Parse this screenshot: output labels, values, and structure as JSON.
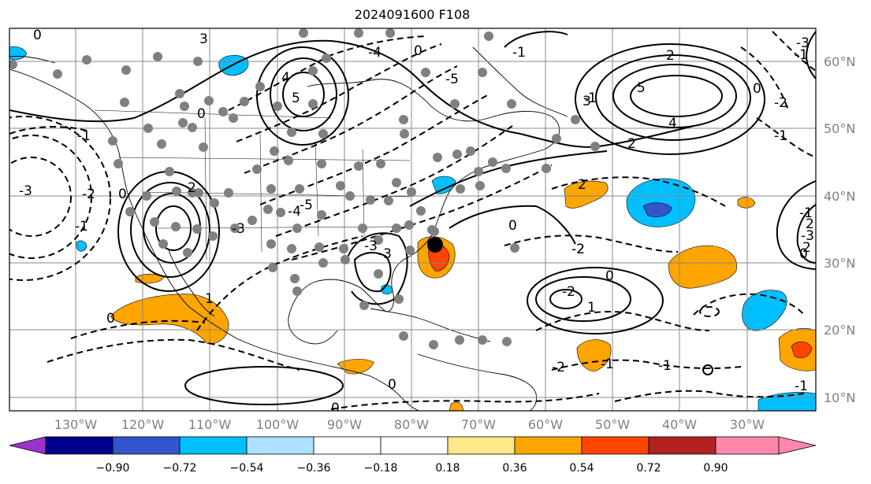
{
  "title": "2024091600 F108",
  "map": {
    "lon_ticks": [
      "130°W",
      "120°W",
      "110°W",
      "100°W",
      "90°W",
      "80°W",
      "70°W",
      "60°W",
      "50°W",
      "40°W",
      "30°W"
    ],
    "lat_ticks": [
      "60°N",
      "50°N",
      "40°N",
      "30°N",
      "20°N",
      "10°N"
    ],
    "contour_labels": [
      "0",
      "3",
      "0",
      "-1",
      "-3",
      "-2",
      "5",
      "4",
      "2",
      "-5",
      "3",
      "-4",
      "-5",
      "0",
      "-4",
      "-3",
      "2",
      "-1",
      "-2",
      "0",
      "5",
      "4",
      "2",
      "-1",
      "-1",
      "-2",
      "-3",
      "0",
      "-1",
      "-3",
      "-3",
      "2",
      "-1",
      "-3",
      "-2",
      "0",
      "1",
      "-1",
      "-2",
      "0",
      "1",
      "2",
      "2",
      "-2",
      "-1",
      "-1",
      "0",
      "-1",
      "0",
      "0",
      "0"
    ],
    "marker": "storm-center"
  },
  "colorbar": {
    "tick_labels": [
      "−0.90",
      "−0.72",
      "−0.54",
      "−0.36",
      "−0.18",
      "0.18",
      "0.36",
      "0.54",
      "0.72",
      "0.90"
    ],
    "colors": [
      "#9933cc",
      "#00008b",
      "#3355cc",
      "#00bfff",
      "#aee0ff",
      "#ffffff",
      "#ffe88a",
      "#ffa500",
      "#ff4500",
      "#b22222",
      "#ff88aa"
    ]
  }
}
